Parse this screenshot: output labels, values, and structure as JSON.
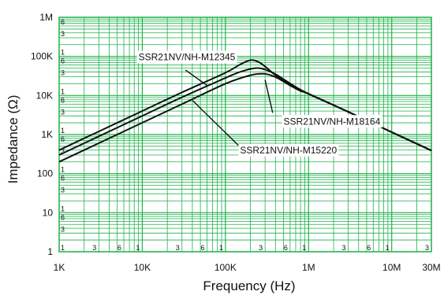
{
  "chart_data": {
    "type": "line",
    "xlabel": "Frequency (Hz)",
    "ylabel": "Impedance (Ω)",
    "x_scale": "log",
    "y_scale": "log",
    "xlim": [
      1000,
      30000000
    ],
    "ylim": [
      1,
      1000000
    ],
    "grid": true,
    "x_ticks": [
      {
        "value": 1000,
        "label": "1K"
      },
      {
        "value": 10000,
        "label": "10K"
      },
      {
        "value": 100000,
        "label": "100K"
      },
      {
        "value": 1000000,
        "label": "1M"
      },
      {
        "value": 10000000,
        "label": "10M"
      },
      {
        "value": 30000000,
        "label": "30M"
      }
    ],
    "y_ticks": [
      {
        "value": 1,
        "label": "1"
      },
      {
        "value": 10,
        "label": "10"
      },
      {
        "value": 100,
        "label": "100"
      },
      {
        "value": 1000,
        "label": "1K"
      },
      {
        "value": 10000,
        "label": "10K"
      },
      {
        "value": 100000,
        "label": "100K"
      },
      {
        "value": 1000000,
        "label": "1M"
      }
    ],
    "x_minor_labels": [
      {
        "value": 3000,
        "label": "3"
      },
      {
        "value": 6000,
        "label": "6"
      },
      {
        "value": 10000,
        "label": "1"
      },
      {
        "value": 30000,
        "label": "3"
      },
      {
        "value": 60000,
        "label": "6"
      },
      {
        "value": 100000,
        "label": "1"
      },
      {
        "value": 300000,
        "label": "3"
      },
      {
        "value": 600000,
        "label": "6"
      },
      {
        "value": 1000000,
        "label": "1"
      },
      {
        "value": 3000000,
        "label": "3"
      },
      {
        "value": 6000000,
        "label": "6"
      },
      {
        "value": 10000000,
        "label": "1"
      },
      {
        "value": 30000000,
        "label": "3"
      }
    ],
    "y_minor_labels": [
      {
        "value": 100000,
        "label": "1"
      },
      {
        "value": 300000,
        "label": "3"
      },
      {
        "value": 600000,
        "label": "6"
      },
      {
        "value": 10000,
        "label": "1"
      },
      {
        "value": 30000,
        "label": "3"
      },
      {
        "value": 60000,
        "label": "6"
      },
      {
        "value": 1000,
        "label": "1"
      },
      {
        "value": 3000,
        "label": "3"
      },
      {
        "value": 6000,
        "label": "6"
      },
      {
        "value": 100,
        "label": "1"
      },
      {
        "value": 300,
        "label": "3"
      },
      {
        "value": 600,
        "label": "6"
      },
      {
        "value": 10,
        "label": "1"
      },
      {
        "value": 30,
        "label": "3"
      },
      {
        "value": 60,
        "label": "6"
      },
      {
        "value": 1,
        "label": "1"
      },
      {
        "value": 3,
        "label": "3"
      },
      {
        "value": 6,
        "label": "6"
      }
    ],
    "series": [
      {
        "name": "SSR21NV/NH-M12345",
        "label_text": "SSR21NV/NH-M12345",
        "label_at": {
          "x": 9000,
          "y": 80000
        },
        "points": [
          [
            1000,
            400
          ],
          [
            3000,
            1200
          ],
          [
            10000,
            4000
          ],
          [
            30000,
            12000
          ],
          [
            100000,
            38000
          ],
          [
            150000,
            62000
          ],
          [
            200000,
            80000
          ],
          [
            250000,
            72000
          ],
          [
            300000,
            55000
          ],
          [
            400000,
            33000
          ],
          [
            500000,
            24000
          ],
          [
            700000,
            16000
          ],
          [
            1000000,
            11000
          ],
          [
            3000000,
            3800
          ],
          [
            10000000,
            1150
          ],
          [
            30000000,
            390
          ]
        ]
      },
      {
        "name": "SSR21NV/NH-M18164",
        "label_text": "SSR21NV/NH-M18164",
        "label_at": {
          "x": 500000,
          "y": 1800
        },
        "points": [
          [
            1000,
            300
          ],
          [
            3000,
            900
          ],
          [
            10000,
            3000
          ],
          [
            30000,
            9000
          ],
          [
            100000,
            28000
          ],
          [
            150000,
            40000
          ],
          [
            230000,
            50000
          ],
          [
            300000,
            46000
          ],
          [
            400000,
            35000
          ],
          [
            500000,
            26000
          ],
          [
            700000,
            16500
          ],
          [
            1000000,
            11000
          ],
          [
            3000000,
            3800
          ],
          [
            10000000,
            1150
          ],
          [
            30000000,
            390
          ]
        ]
      },
      {
        "name": "SSR21NV/NH-M15220",
        "label_text": "SSR21NV/NH-M15220",
        "label_at": {
          "x": 150000,
          "y": 330
        },
        "points": [
          [
            1000,
            200
          ],
          [
            3000,
            600
          ],
          [
            10000,
            2000
          ],
          [
            30000,
            6000
          ],
          [
            100000,
            20000
          ],
          [
            200000,
            33000
          ],
          [
            280000,
            36000
          ],
          [
            350000,
            33000
          ],
          [
            450000,
            26000
          ],
          [
            600000,
            18000
          ],
          [
            800000,
            13000
          ],
          [
            1000000,
            11000
          ],
          [
            3000000,
            3800
          ],
          [
            10000000,
            1150
          ],
          [
            30000000,
            390
          ]
        ]
      }
    ],
    "leaders": [
      {
        "series": 0,
        "from": {
          "x": 33000,
          "y": 45000
        },
        "to": {
          "x": 60000,
          "y": 18000
        }
      },
      {
        "series": 1,
        "from": {
          "x": 370000,
          "y": 3600
        },
        "to": {
          "x": 300000,
          "y": 25000
        }
      },
      {
        "series": 2,
        "from": {
          "x": 160000,
          "y": 420
        },
        "to": {
          "x": 40000,
          "y": 7500
        }
      }
    ],
    "colors": {
      "grid": "#1fb24a",
      "line": "#111111",
      "background": "#ffffff"
    }
  }
}
